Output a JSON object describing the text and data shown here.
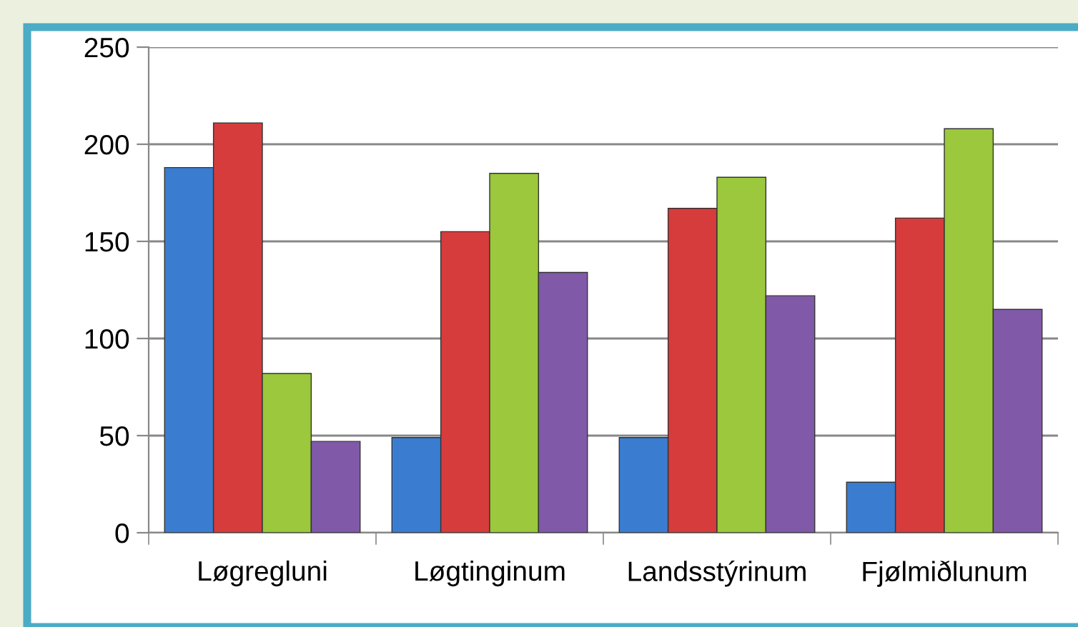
{
  "chart_data": {
    "type": "bar",
    "categories": [
      "Løgregluni",
      "Løgtinginum",
      "Landsstýrinum",
      "Fjølmiðlunum"
    ],
    "series": [
      {
        "color": "#3a7dd0",
        "values": [
          188,
          49,
          49,
          26
        ]
      },
      {
        "color": "#d63c3c",
        "values": [
          211,
          155,
          167,
          162
        ]
      },
      {
        "color": "#9bc83c",
        "values": [
          82,
          185,
          183,
          208
        ]
      },
      {
        "color": "#8059a8",
        "values": [
          47,
          134,
          122,
          115
        ]
      }
    ],
    "ylim": [
      0,
      250
    ],
    "yticks": [
      0,
      50,
      100,
      150,
      200,
      250
    ],
    "grid": "y",
    "legend": false
  }
}
